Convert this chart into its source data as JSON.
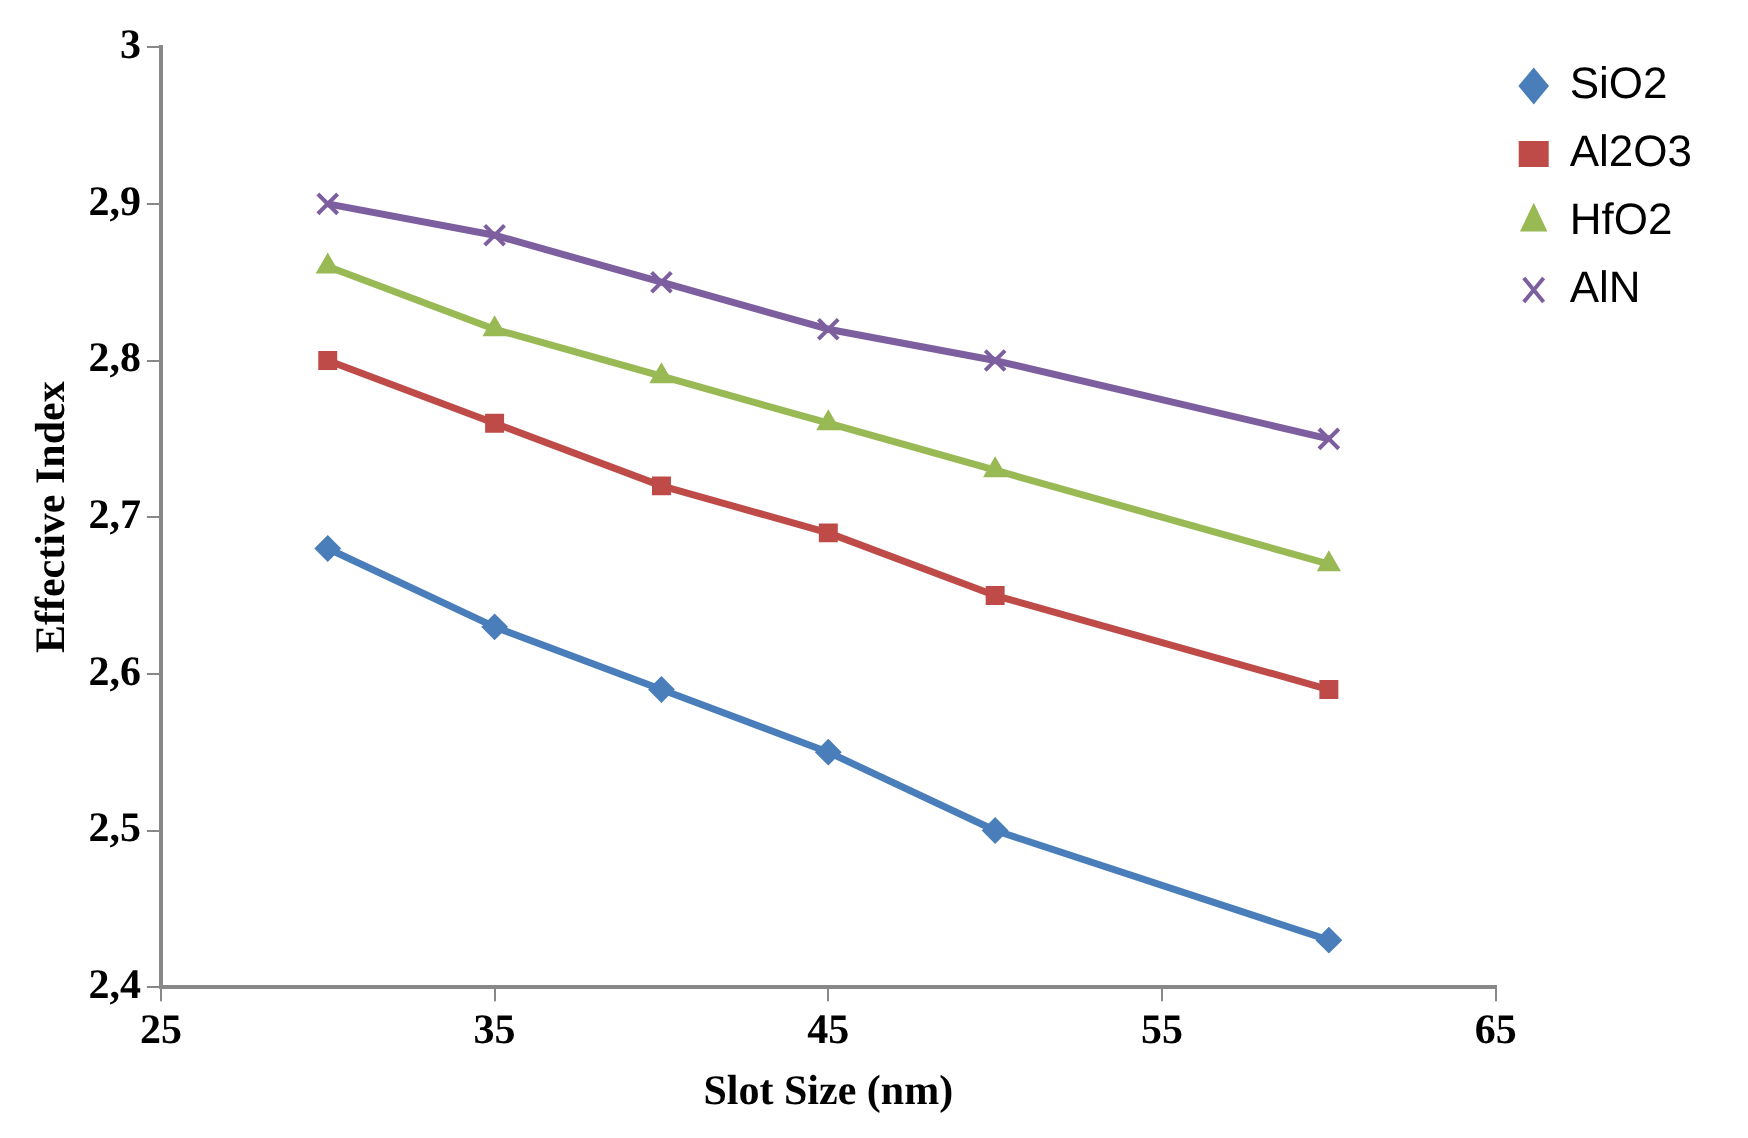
{
  "chart_data": {
    "type": "line",
    "xlabel": "Slot Size (nm)",
    "ylabel": "Effective Index",
    "x": [
      30,
      35,
      40,
      45,
      50,
      60
    ],
    "series": [
      {
        "name": "SiO2",
        "color": "#4a7ebb",
        "marker": "diamond",
        "values": [
          2.68,
          2.63,
          2.59,
          2.55,
          2.5,
          2.43
        ]
      },
      {
        "name": "Al2O3",
        "color": "#be4b48",
        "marker": "square",
        "values": [
          2.8,
          2.76,
          2.72,
          2.69,
          2.65,
          2.59
        ]
      },
      {
        "name": "HfO2",
        "color": "#98b954",
        "marker": "triangle",
        "values": [
          2.86,
          2.82,
          2.79,
          2.76,
          2.73,
          2.67
        ]
      },
      {
        "name": "AlN",
        "color": "#7d5fa0",
        "marker": "cross",
        "values": [
          2.9,
          2.88,
          2.85,
          2.82,
          2.8,
          2.75
        ]
      }
    ],
    "xlim": [
      25,
      65
    ],
    "xticks": [
      25,
      35,
      45,
      55,
      65
    ],
    "ylim": [
      2.4,
      3
    ],
    "yticks": [
      {
        "value": 2.4,
        "label": "2,4"
      },
      {
        "value": 2.5,
        "label": "2,5"
      },
      {
        "value": 2.6,
        "label": "2,6"
      },
      {
        "value": 2.7,
        "label": "2,7"
      },
      {
        "value": 2.8,
        "label": "2,8"
      },
      {
        "value": 2.9,
        "label": "2,9"
      },
      3
    ],
    "grid": false,
    "legend": "top right"
  }
}
